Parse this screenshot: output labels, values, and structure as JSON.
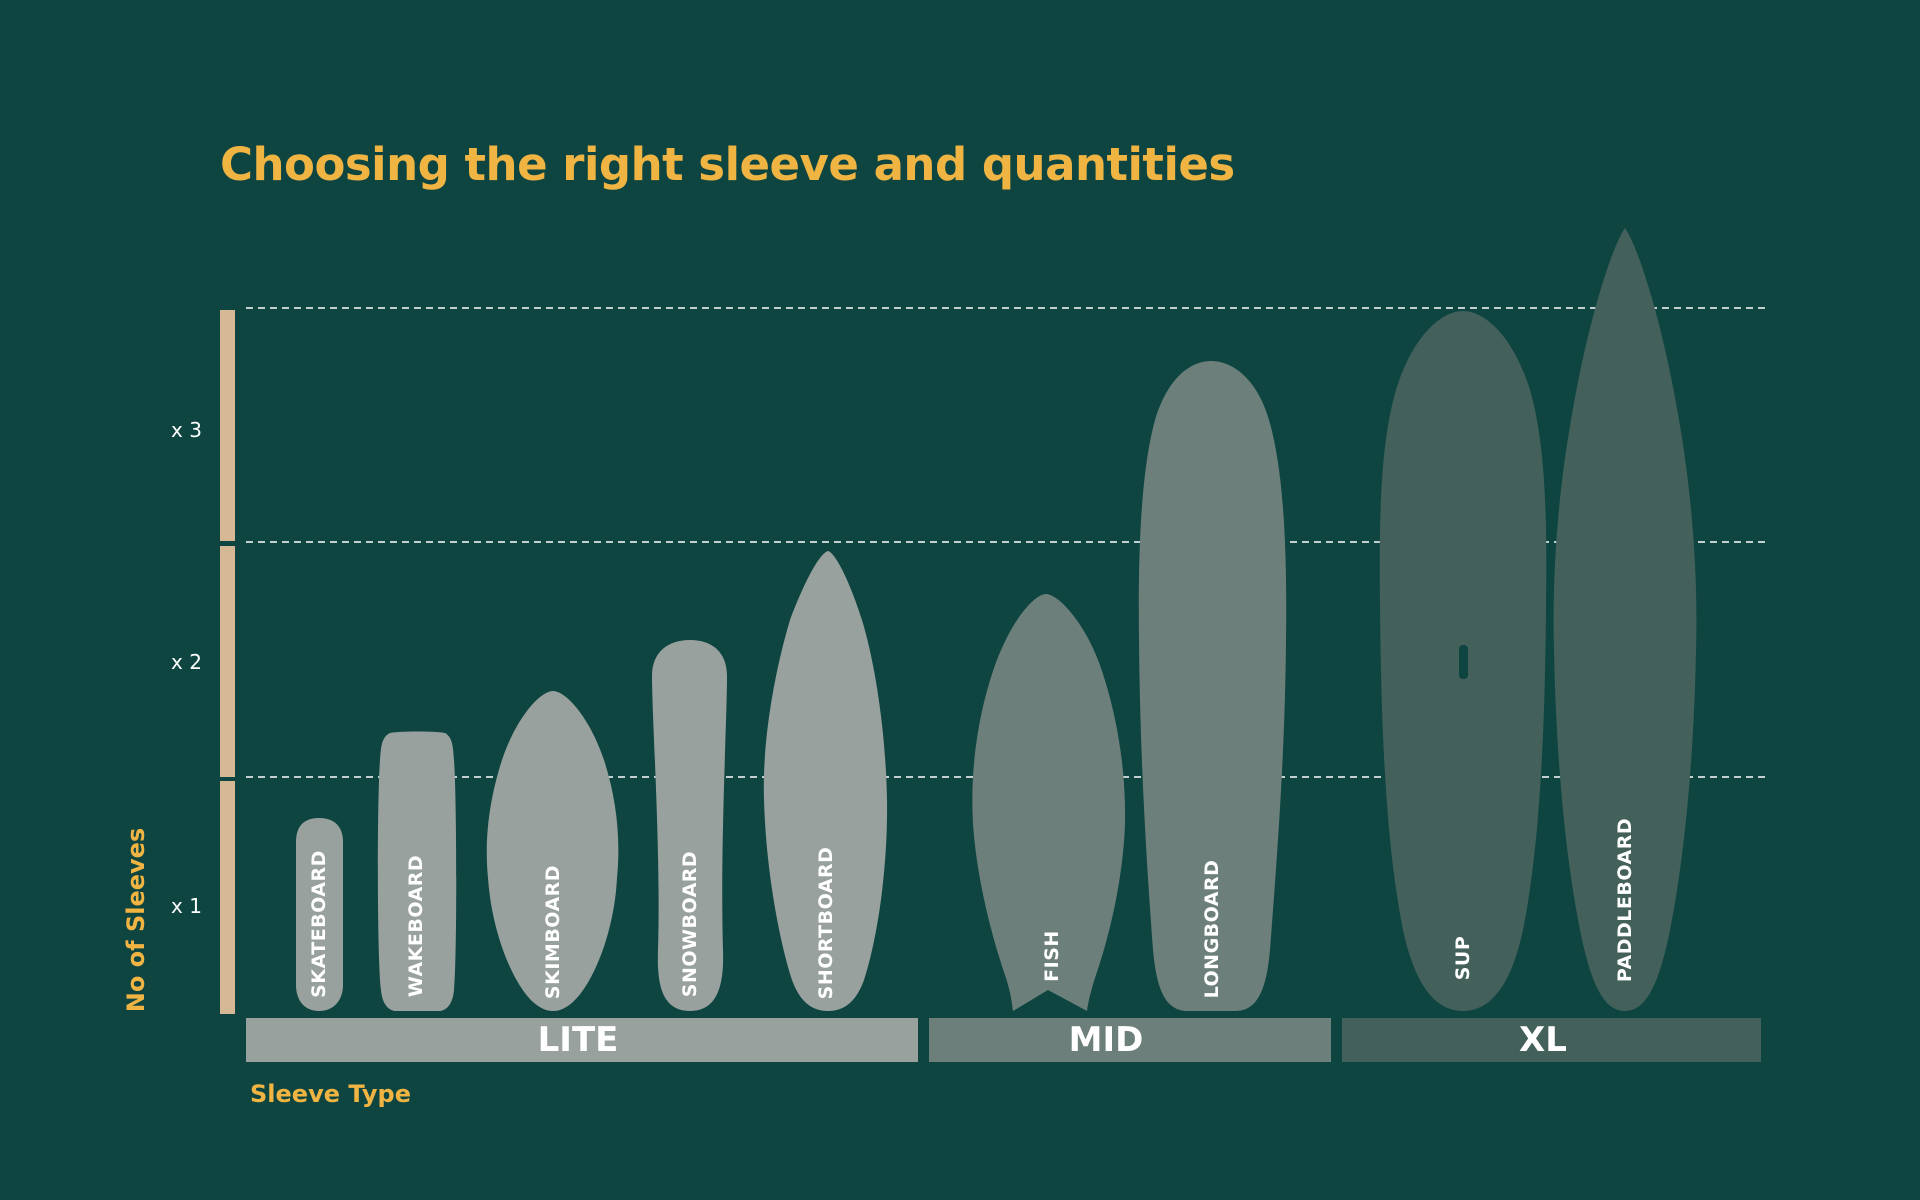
{
  "title": "Choosing the right sleeve and quantities",
  "y_axis_label": "No of Sleeves",
  "x_axis_label": "Sleeve Type",
  "levels": [
    {
      "label": "x 1",
      "value": 1
    },
    {
      "label": "x 2",
      "value": 2
    },
    {
      "label": "x 3",
      "value": 3
    }
  ],
  "categories": [
    {
      "label": "LITE",
      "color": "#98a19e"
    },
    {
      "label": "MID",
      "color": "#6d7f7a"
    },
    {
      "label": "XL",
      "color": "#43605b"
    }
  ],
  "boards": [
    {
      "label": "SKATEBOARD",
      "category": "LITE",
      "shape": "skateboard-icon"
    },
    {
      "label": "WAKEBOARD",
      "category": "LITE",
      "shape": "wakeboard-icon"
    },
    {
      "label": "SKIMBOARD",
      "category": "LITE",
      "shape": "skimboard-icon"
    },
    {
      "label": "SNOWBOARD",
      "category": "LITE",
      "shape": "snowboard-icon"
    },
    {
      "label": "SHORTBOARD",
      "category": "LITE",
      "shape": "shortboard-icon"
    },
    {
      "label": "FISH",
      "category": "MID",
      "shape": "fish-board-icon"
    },
    {
      "label": "LONGBOARD",
      "category": "MID",
      "shape": "longboard-icon"
    },
    {
      "label": "SUP",
      "category": "XL",
      "shape": "sup-board-icon"
    },
    {
      "label": "PADDLEBOARD",
      "category": "XL",
      "shape": "paddleboard-icon"
    }
  ],
  "colors": {
    "background": "#0e4541",
    "accent": "#f0b443",
    "axis_bar": "#d6b895",
    "gridline": "#ffffff"
  }
}
